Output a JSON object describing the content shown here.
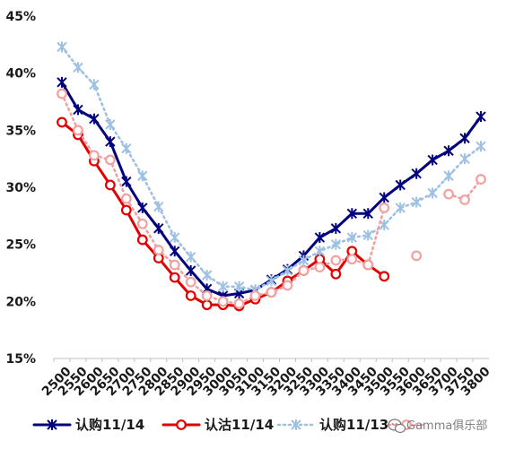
{
  "chart_data": {
    "type": "line",
    "title": "",
    "xlabel": "",
    "ylabel": "",
    "ylim": [
      0.15,
      0.45
    ],
    "y_ticks": [
      "15%",
      "20%",
      "25%",
      "30%",
      "35%",
      "40%",
      "45%"
    ],
    "y_tick_values": [
      0.15,
      0.2,
      0.25,
      0.3,
      0.35,
      0.4,
      0.45
    ],
    "grid": false,
    "legend_position": "bottom",
    "categories": [
      "2500",
      "2550",
      "2600",
      "2650",
      "2700",
      "2750",
      "2800",
      "2850",
      "2900",
      "2950",
      "3000",
      "3050",
      "3100",
      "3150",
      "3200",
      "3250",
      "3300",
      "3350",
      "3400",
      "3450",
      "3500",
      "3550",
      "3600",
      "3650",
      "3700",
      "3750",
      "3800"
    ],
    "series": [
      {
        "name": "认购11/14",
        "color": "#00007f",
        "line": "solid",
        "marker": "star",
        "values": [
          0.392,
          0.368,
          0.36,
          0.34,
          0.305,
          0.282,
          0.264,
          0.244,
          0.227,
          0.211,
          0.205,
          0.207,
          0.21,
          0.219,
          0.228,
          0.24,
          0.256,
          0.264,
          0.277,
          0.277,
          0.291,
          0.302,
          0.312,
          0.324,
          0.332,
          0.343,
          0.362
        ]
      },
      {
        "name": "认沽11/14",
        "color": "#e30000",
        "line": "solid",
        "marker": "circle",
        "values": [
          0.357,
          0.346,
          0.323,
          0.302,
          0.28,
          0.254,
          0.238,
          0.221,
          0.205,
          0.197,
          0.197,
          0.196,
          0.202,
          0.208,
          0.218,
          0.227,
          0.237,
          0.224,
          0.244,
          0.232,
          0.222,
          null,
          null,
          null,
          null,
          null,
          null
        ]
      },
      {
        "name": "认购11/13",
        "color": "#9ec1e3",
        "line": "dotted",
        "marker": "star",
        "values": [
          0.423,
          0.405,
          0.39,
          0.355,
          0.334,
          0.31,
          0.283,
          0.256,
          0.239,
          0.223,
          0.213,
          0.213,
          0.21,
          0.218,
          0.227,
          0.236,
          0.244,
          0.25,
          0.256,
          0.258,
          0.267,
          0.282,
          0.287,
          0.295,
          0.31,
          0.325,
          0.336
        ]
      },
      {
        "name": "认沽11/13",
        "color": "#f2a0a0",
        "line": "dotted",
        "marker": "circle",
        "values": [
          0.382,
          0.35,
          0.328,
          0.324,
          0.29,
          0.268,
          0.245,
          0.232,
          0.217,
          0.205,
          0.2,
          0.198,
          0.205,
          0.208,
          0.214,
          0.227,
          0.23,
          0.236,
          0.237,
          0.232,
          0.282,
          null,
          0.24,
          null,
          0.294,
          0.289,
          0.307
        ]
      }
    ]
  },
  "watermark": {
    "icon": "wechat-icon",
    "text": "Gamma俱乐部"
  }
}
